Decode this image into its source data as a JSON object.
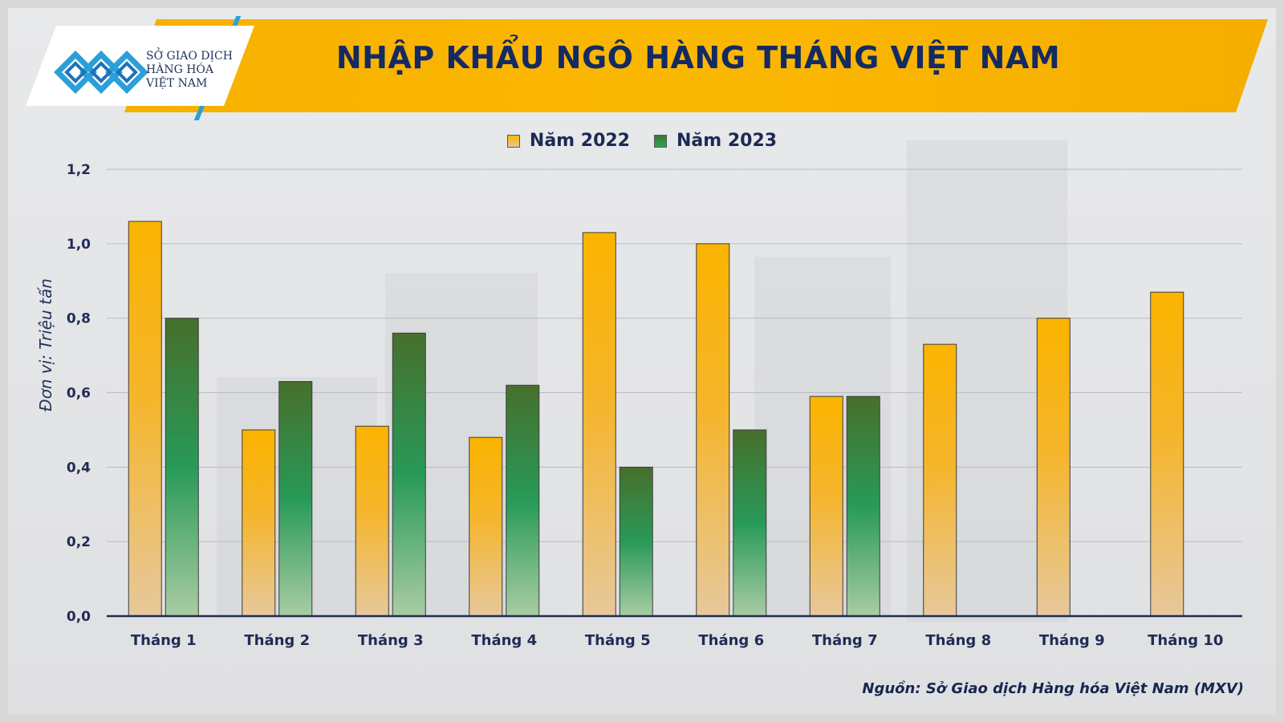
{
  "header": {
    "logo_lines": [
      "SỞ GIAO DỊCH",
      "HÀNG HÓA",
      "VIỆT NAM"
    ],
    "title": "NHẬP KHẨU NGÔ HÀNG THÁNG VIỆT NAM"
  },
  "colors": {
    "banner": "#fbb802",
    "title": "#142a63",
    "series_2022": "#f9b700",
    "series_2023": "#3b7a32",
    "axis_text": "#1f2c55"
  },
  "source_text": "Nguồn: Sở Giao dịch Hàng hóa Việt Nam (MXV)",
  "chart_data": {
    "type": "bar",
    "title": "NHẬP KHẨU NGÔ HÀNG THÁNG VIỆT NAM",
    "ylabel": "Đơn vị: Triệu tấn",
    "xlabel": "",
    "ylim": [
      0,
      1.2
    ],
    "yticks": [
      "0,0",
      "0,2",
      "0,4",
      "0,6",
      "0,8",
      "1,0",
      "1,2"
    ],
    "ytick_values": [
      0,
      0.2,
      0.4,
      0.6,
      0.8,
      1.0,
      1.2
    ],
    "grid": true,
    "legend_position": "top-center",
    "categories": [
      "Tháng 1",
      "Tháng 2",
      "Tháng 3",
      "Tháng 4",
      "Tháng 5",
      "Tháng 6",
      "Tháng 7",
      "Tháng 8",
      "Tháng 9",
      "Tháng 10"
    ],
    "series": [
      {
        "name": "Năm 2022",
        "values": [
          1.06,
          0.5,
          0.51,
          0.48,
          1.03,
          1.0,
          0.59,
          0.73,
          0.8,
          0.87
        ]
      },
      {
        "name": "Năm 2023",
        "values": [
          0.8,
          0.63,
          0.76,
          0.62,
          0.4,
          0.5,
          0.59,
          null,
          null,
          null
        ]
      }
    ]
  }
}
